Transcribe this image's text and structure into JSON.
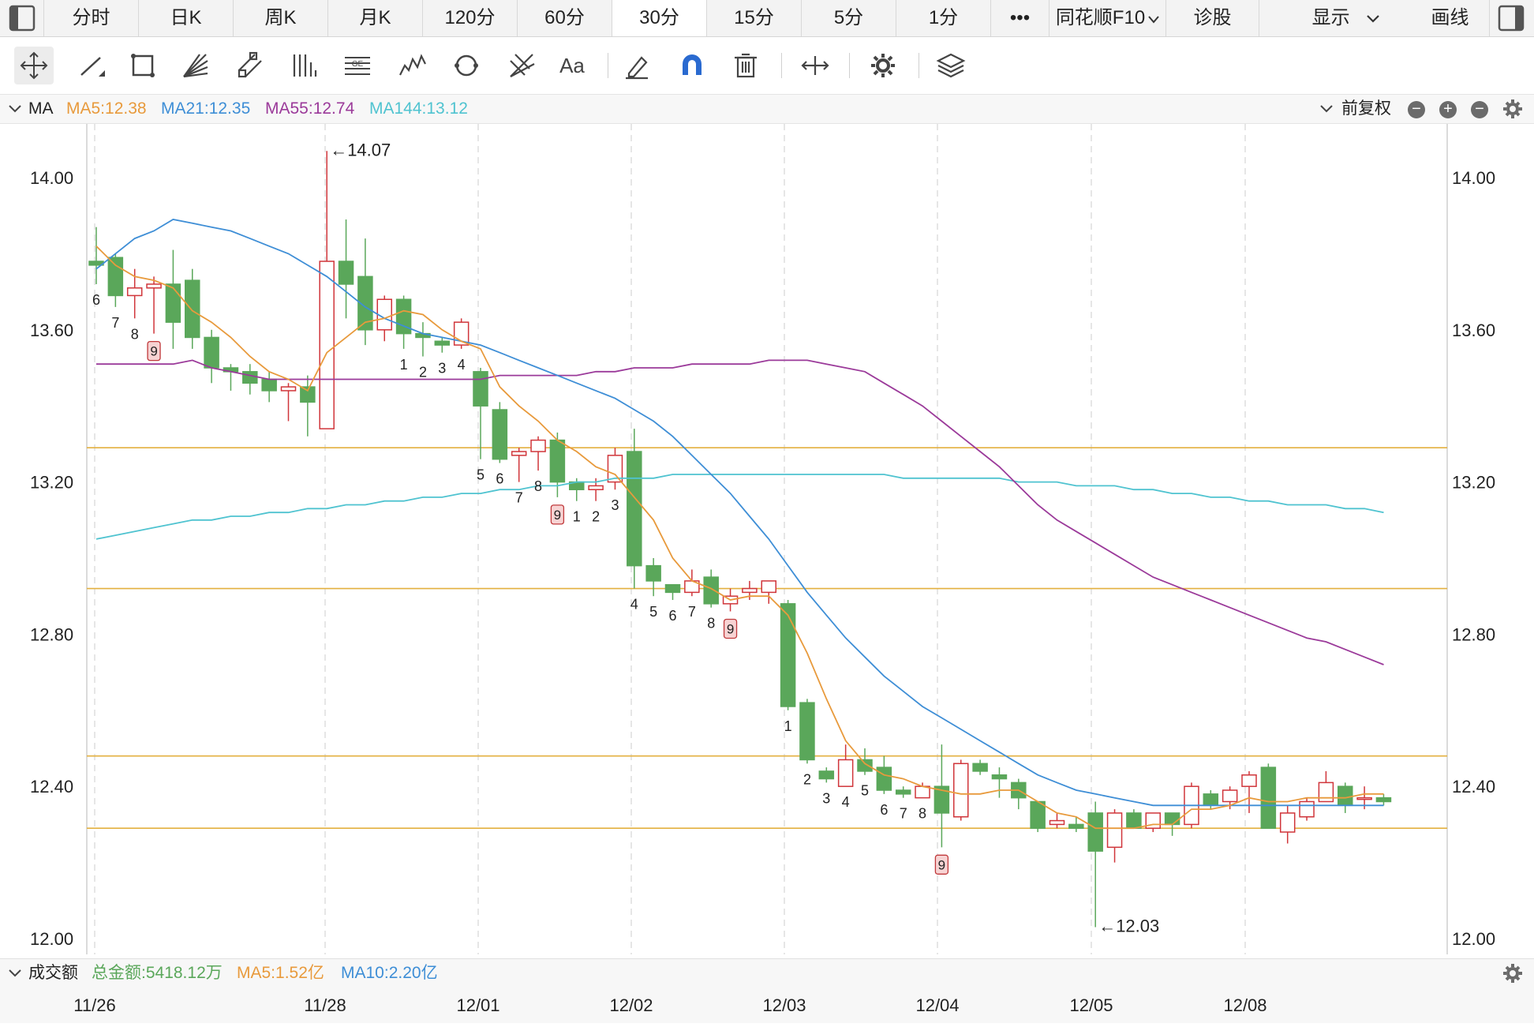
{
  "tabs": [
    {
      "label": "分时"
    },
    {
      "label": "日K"
    },
    {
      "label": "周K"
    },
    {
      "label": "月K"
    },
    {
      "label": "120分"
    },
    {
      "label": "60分"
    },
    {
      "label": "30分"
    },
    {
      "label": "15分"
    },
    {
      "label": "5分"
    },
    {
      "label": "1分"
    },
    {
      "label": "•••"
    },
    {
      "label": "同花顺F10"
    },
    {
      "label": "诊股"
    }
  ],
  "right_tabs": {
    "display": "显示",
    "draw": "画线"
  },
  "tools": [
    "move-cross-icon",
    "line-tool-icon",
    "rect-tool-icon",
    "fan-tool-icon",
    "parallel-channel-icon",
    "vertical-lines-icon",
    "gann-icon",
    "wave-icon",
    "cycle-icon",
    "fib-fan-icon",
    "text-tool-icon",
    "eraser-icon",
    "magnet-icon",
    "trash-icon",
    "expand-horizontal-icon",
    "settings-gear-icon",
    "layers-icon"
  ],
  "tool_text": "Aa",
  "ma_legend": {
    "name": "MA",
    "ma5": "MA5:12.38",
    "ma21": "MA21:12.35",
    "ma55": "MA55:12.74",
    "ma144": "MA144:13.12",
    "adjust": "前复权"
  },
  "colors": {
    "up": "#d0353a",
    "down": "#5aa75a",
    "ma5": "#e89a3c",
    "ma21": "#3e8ed6",
    "ma55": "#9b3a9a",
    "ma144": "#4fc3d0",
    "hline": "#e3b040"
  },
  "volume_legend": {
    "name": "成交额",
    "total": "总金额:5418.12万",
    "ma5": "MA5:1.52亿",
    "ma10": "MA10:2.20亿"
  },
  "chart_data": {
    "type": "candlestick",
    "ylim": [
      12.0,
      14.0
    ],
    "y_ticks": [
      "14.00",
      "13.60",
      "13.20",
      "12.80",
      "12.40",
      "12.00"
    ],
    "x_ticks": [
      "11/26",
      "11/28",
      "12/01",
      "12/02",
      "12/03",
      "12/04",
      "12/05",
      "12/08"
    ],
    "annotations": {
      "high": "←14.07",
      "high_value": 14.07,
      "low": "←12.03",
      "low_value": 12.03
    },
    "horizontal_lines": [
      13.29,
      12.92,
      12.48,
      12.29
    ],
    "candles": [
      [
        13.78,
        13.77,
        13.87,
        13.72
      ],
      [
        13.79,
        13.69,
        13.8,
        13.66
      ],
      [
        13.69,
        13.71,
        13.76,
        13.63
      ],
      [
        13.71,
        13.72,
        13.74,
        13.59
      ],
      [
        13.72,
        13.62,
        13.81,
        13.55
      ],
      [
        13.73,
        13.58,
        13.76,
        13.55
      ],
      [
        13.58,
        13.5,
        13.6,
        13.46
      ],
      [
        13.5,
        13.49,
        13.51,
        13.44
      ],
      [
        13.49,
        13.46,
        13.51,
        13.43
      ],
      [
        13.47,
        13.44,
        13.49,
        13.41
      ],
      [
        13.44,
        13.45,
        13.46,
        13.36
      ],
      [
        13.45,
        13.41,
        13.48,
        13.32
      ],
      [
        13.34,
        13.78,
        14.07,
        13.34
      ],
      [
        13.78,
        13.72,
        13.89,
        13.63
      ],
      [
        13.74,
        13.6,
        13.84,
        13.56
      ],
      [
        13.6,
        13.68,
        13.69,
        13.57
      ],
      [
        13.68,
        13.59,
        13.69,
        13.55
      ],
      [
        13.59,
        13.58,
        13.62,
        13.53
      ],
      [
        13.57,
        13.56,
        13.58,
        13.54
      ],
      [
        13.56,
        13.62,
        13.63,
        13.55
      ],
      [
        13.49,
        13.4,
        13.5,
        13.26
      ],
      [
        13.39,
        13.26,
        13.41,
        13.25
      ],
      [
        13.27,
        13.28,
        13.29,
        13.2
      ],
      [
        13.28,
        13.31,
        13.32,
        13.23
      ],
      [
        13.31,
        13.2,
        13.33,
        13.16
      ],
      [
        13.2,
        13.18,
        13.21,
        13.15
      ],
      [
        13.18,
        13.19,
        13.21,
        13.15
      ],
      [
        13.2,
        13.27,
        13.29,
        13.18
      ],
      [
        13.28,
        12.98,
        13.34,
        12.92
      ],
      [
        12.98,
        12.94,
        13.0,
        12.9
      ],
      [
        12.93,
        12.91,
        12.93,
        12.89
      ],
      [
        12.91,
        12.94,
        12.97,
        12.9
      ],
      [
        12.95,
        12.88,
        12.97,
        12.87
      ],
      [
        12.88,
        12.9,
        12.92,
        12.86
      ],
      [
        12.91,
        12.92,
        12.94,
        12.89
      ],
      [
        12.91,
        12.94,
        12.94,
        12.88
      ],
      [
        12.88,
        12.61,
        12.89,
        12.6
      ],
      [
        12.62,
        12.47,
        12.63,
        12.46
      ],
      [
        12.44,
        12.42,
        12.45,
        12.41
      ],
      [
        12.4,
        12.47,
        12.51,
        12.4
      ],
      [
        12.47,
        12.44,
        12.5,
        12.43
      ],
      [
        12.45,
        12.39,
        12.48,
        12.38
      ],
      [
        12.39,
        12.38,
        12.4,
        12.37
      ],
      [
        12.37,
        12.4,
        12.41,
        12.37
      ],
      [
        12.4,
        12.33,
        12.51,
        12.24
      ],
      [
        12.32,
        12.46,
        12.47,
        12.31
      ],
      [
        12.46,
        12.44,
        12.47,
        12.43
      ],
      [
        12.43,
        12.42,
        12.45,
        12.37
      ],
      [
        12.41,
        12.37,
        12.42,
        12.34
      ],
      [
        12.36,
        12.29,
        12.36,
        12.28
      ],
      [
        12.3,
        12.31,
        12.33,
        12.29
      ],
      [
        12.3,
        12.29,
        12.32,
        12.28
      ],
      [
        12.33,
        12.23,
        12.36,
        12.03
      ],
      [
        12.24,
        12.33,
        12.34,
        12.2
      ],
      [
        12.33,
        12.29,
        12.34,
        12.29
      ],
      [
        12.29,
        12.33,
        12.33,
        12.28
      ],
      [
        12.33,
        12.3,
        12.33,
        12.27
      ],
      [
        12.3,
        12.4,
        12.41,
        12.29
      ],
      [
        12.38,
        12.35,
        12.39,
        12.34
      ],
      [
        12.36,
        12.39,
        12.4,
        12.34
      ],
      [
        12.4,
        12.43,
        12.44,
        12.33
      ],
      [
        12.45,
        12.29,
        12.46,
        12.29
      ],
      [
        12.28,
        12.33,
        12.35,
        12.25
      ],
      [
        12.32,
        12.36,
        12.37,
        12.31
      ],
      [
        12.36,
        12.41,
        12.44,
        12.36
      ],
      [
        12.4,
        12.35,
        12.41,
        12.33
      ],
      [
        12.37,
        12.37,
        12.4,
        12.34
      ],
      [
        12.37,
        12.36,
        12.38,
        12.35
      ]
    ],
    "ma5": [
      13.82,
      13.77,
      13.74,
      13.73,
      13.71,
      13.65,
      13.62,
      13.58,
      13.53,
      13.49,
      13.47,
      13.44,
      13.54,
      13.58,
      13.62,
      13.63,
      13.65,
      13.64,
      13.6,
      13.57,
      13.55,
      13.45,
      13.4,
      13.36,
      13.31,
      13.28,
      13.24,
      13.22,
      13.16,
      13.1,
      13.0,
      12.94,
      12.92,
      12.89,
      12.9,
      12.9,
      12.85,
      12.75,
      12.63,
      12.52,
      12.46,
      12.43,
      12.42,
      12.4,
      12.39,
      12.38,
      12.38,
      12.39,
      12.39,
      12.36,
      12.33,
      12.32,
      12.29,
      12.29,
      12.29,
      12.3,
      12.3,
      12.34,
      12.34,
      12.35,
      12.37,
      12.36,
      12.36,
      12.37,
      12.37,
      12.37,
      12.38,
      12.38
    ],
    "ma21": [
      13.76,
      13.8,
      13.84,
      13.86,
      13.89,
      13.88,
      13.87,
      13.86,
      13.84,
      13.82,
      13.8,
      13.77,
      13.74,
      13.7,
      13.66,
      13.63,
      13.61,
      13.59,
      13.58,
      13.57,
      13.56,
      13.54,
      13.52,
      13.5,
      13.48,
      13.46,
      13.44,
      13.42,
      13.39,
      13.36,
      13.32,
      13.27,
      13.22,
      13.17,
      13.11,
      13.05,
      12.98,
      12.91,
      12.85,
      12.79,
      12.74,
      12.69,
      12.65,
      12.61,
      12.58,
      12.55,
      12.52,
      12.49,
      12.46,
      12.43,
      12.41,
      12.39,
      12.38,
      12.37,
      12.36,
      12.35,
      12.35,
      12.35,
      12.35,
      12.35,
      12.35,
      12.35,
      12.35,
      12.35,
      12.35,
      12.35,
      12.35,
      12.35
    ],
    "ma55": [
      13.51,
      13.51,
      13.51,
      13.51,
      13.51,
      13.52,
      13.5,
      13.49,
      13.48,
      13.47,
      13.47,
      13.47,
      13.47,
      13.47,
      13.47,
      13.47,
      13.47,
      13.47,
      13.47,
      13.47,
      13.47,
      13.48,
      13.48,
      13.48,
      13.48,
      13.48,
      13.49,
      13.49,
      13.5,
      13.5,
      13.5,
      13.51,
      13.51,
      13.51,
      13.51,
      13.52,
      13.52,
      13.52,
      13.51,
      13.5,
      13.49,
      13.46,
      13.43,
      13.4,
      13.36,
      13.32,
      13.28,
      13.24,
      13.19,
      13.14,
      13.1,
      13.07,
      13.04,
      13.01,
      12.98,
      12.95,
      12.93,
      12.91,
      12.89,
      12.87,
      12.85,
      12.83,
      12.81,
      12.79,
      12.78,
      12.76,
      12.74,
      12.72
    ],
    "ma144": [
      13.05,
      13.06,
      13.07,
      13.08,
      13.09,
      13.1,
      13.1,
      13.11,
      13.11,
      13.12,
      13.12,
      13.13,
      13.13,
      13.14,
      13.14,
      13.15,
      13.15,
      13.16,
      13.16,
      13.17,
      13.17,
      13.18,
      13.18,
      13.19,
      13.19,
      13.2,
      13.2,
      13.21,
      13.21,
      13.21,
      13.22,
      13.22,
      13.22,
      13.22,
      13.22,
      13.22,
      13.22,
      13.22,
      13.22,
      13.22,
      13.22,
      13.22,
      13.21,
      13.21,
      13.21,
      13.21,
      13.21,
      13.21,
      13.2,
      13.2,
      13.2,
      13.19,
      13.19,
      13.19,
      13.18,
      13.18,
      13.17,
      13.17,
      13.16,
      13.16,
      13.15,
      13.15,
      13.14,
      13.14,
      13.14,
      13.13,
      13.13,
      13.12
    ],
    "td_markers": [
      {
        "i": 0,
        "label": "6"
      },
      {
        "i": 1,
        "label": "7"
      },
      {
        "i": 2,
        "label": "8"
      },
      {
        "i": 3,
        "label": "9",
        "boxed": true
      },
      {
        "i": 16,
        "label": "1"
      },
      {
        "i": 17,
        "label": "2"
      },
      {
        "i": 18,
        "label": "3"
      },
      {
        "i": 19,
        "label": "4"
      },
      {
        "i": 20,
        "label": "5"
      },
      {
        "i": 21,
        "label": "6"
      },
      {
        "i": 22,
        "label": "7"
      },
      {
        "i": 23,
        "label": "8"
      },
      {
        "i": 24,
        "label": "9",
        "boxed": true
      },
      {
        "i": 25,
        "label": "1"
      },
      {
        "i": 26,
        "label": "2"
      },
      {
        "i": 27,
        "label": "3"
      },
      {
        "i": 28,
        "label": "4"
      },
      {
        "i": 29,
        "label": "5"
      },
      {
        "i": 30,
        "label": "6"
      },
      {
        "i": 31,
        "label": "7"
      },
      {
        "i": 32,
        "label": "8"
      },
      {
        "i": 33,
        "label": "9",
        "boxed": true
      },
      {
        "i": 36,
        "label": "1"
      },
      {
        "i": 37,
        "label": "2"
      },
      {
        "i": 38,
        "label": "3"
      },
      {
        "i": 39,
        "label": "4"
      },
      {
        "i": 40,
        "label": "5"
      },
      {
        "i": 41,
        "label": "6"
      },
      {
        "i": 42,
        "label": "7"
      },
      {
        "i": 43,
        "label": "8"
      },
      {
        "i": 44,
        "label": "9",
        "boxed": true
      }
    ]
  }
}
